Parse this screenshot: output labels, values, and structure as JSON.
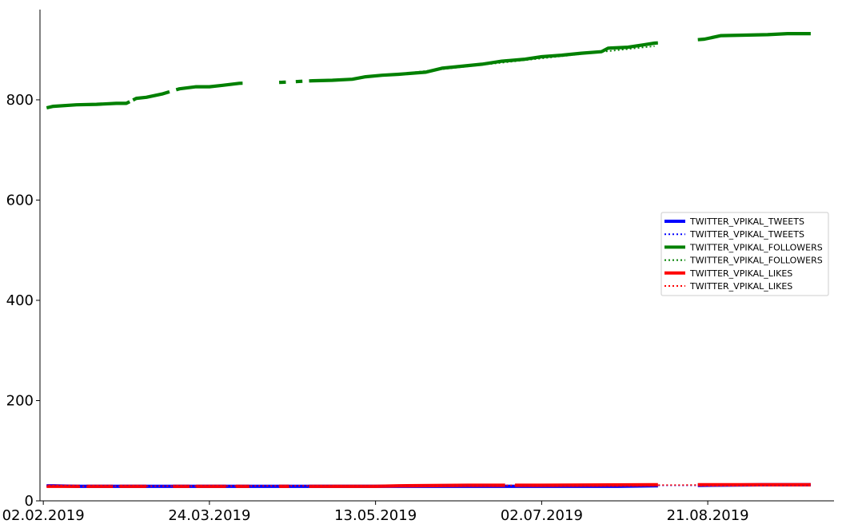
{
  "chart_data": {
    "type": "line",
    "title": "",
    "xlabel": "",
    "ylabel": "",
    "x_axis": {
      "type": "date",
      "range": [
        "2019-02-01",
        "2019-09-28"
      ],
      "ticks": [
        {
          "date": "2019-02-02",
          "label": "02.02.2019"
        },
        {
          "date": "2019-03-24",
          "label": "24.03.2019"
        },
        {
          "date": "2019-05-13",
          "label": "13.05.2019"
        },
        {
          "date": "2019-07-02",
          "label": "02.07.2019"
        },
        {
          "date": "2019-08-21",
          "label": "21.08.2019"
        }
      ]
    },
    "y_axis": {
      "range": [
        0,
        980
      ],
      "ticks": [
        {
          "value": 0,
          "label": "0"
        },
        {
          "value": 200,
          "label": "200"
        },
        {
          "value": 400,
          "label": "400"
        },
        {
          "value": 600,
          "label": "600"
        },
        {
          "value": 800,
          "label": "800"
        }
      ]
    },
    "grid": false,
    "legend": {
      "position": "center-right"
    },
    "series": [
      {
        "name": "TWITTER_VPIKAL_TWEETS",
        "color": "#0000ff",
        "style": "solid",
        "points": [
          [
            "2019-02-03",
            30
          ],
          [
            "2019-02-05",
            30
          ],
          [
            "2019-02-12",
            29
          ],
          [
            "2019-02-20",
            29
          ],
          [
            "2019-03-05",
            29
          ],
          [
            "2019-03-24",
            29
          ],
          [
            "2019-04-15",
            29
          ],
          [
            "2019-05-05",
            29
          ],
          [
            "2019-06-01",
            29
          ],
          [
            "2019-07-01",
            29
          ],
          [
            "2019-07-25",
            29
          ],
          [
            "2019-08-05",
            30
          ],
          [
            "2019-08-20",
            31
          ],
          [
            "2019-09-06",
            32
          ],
          [
            "2019-09-21",
            32
          ]
        ],
        "gaps": [
          [
            "2019-08-06",
            "2019-08-18"
          ]
        ]
      },
      {
        "name": "TWITTER_VPIKAL_TWEETS",
        "color": "#0000ff",
        "style": "dotted",
        "points": [
          [
            "2019-02-03",
            30
          ],
          [
            "2019-09-21",
            31
          ]
        ],
        "gaps": []
      },
      {
        "name": "TWITTER_VPIKAL_FOLLOWERS",
        "color": "#008000",
        "style": "solid",
        "points": [
          [
            "2019-02-03",
            784
          ],
          [
            "2019-02-05",
            787
          ],
          [
            "2019-02-12",
            790
          ],
          [
            "2019-02-18",
            791
          ],
          [
            "2019-02-24",
            793
          ],
          [
            "2019-02-27",
            793
          ],
          [
            "2019-03-02",
            803
          ],
          [
            "2019-03-05",
            805
          ],
          [
            "2019-03-10",
            812
          ],
          [
            "2019-03-15",
            822
          ],
          [
            "2019-03-20",
            826
          ],
          [
            "2019-03-24",
            826
          ],
          [
            "2019-03-28",
            829
          ],
          [
            "2019-04-02",
            833
          ],
          [
            "2019-04-15",
            835
          ],
          [
            "2019-04-24",
            838
          ],
          [
            "2019-04-30",
            839
          ],
          [
            "2019-05-06",
            841
          ],
          [
            "2019-05-10",
            846
          ],
          [
            "2019-05-15",
            849
          ],
          [
            "2019-05-20",
            851
          ],
          [
            "2019-05-28",
            855
          ],
          [
            "2019-06-02",
            863
          ],
          [
            "2019-06-08",
            867
          ],
          [
            "2019-06-14",
            871
          ],
          [
            "2019-06-20",
            877
          ],
          [
            "2019-06-27",
            881
          ],
          [
            "2019-07-02",
            886
          ],
          [
            "2019-07-08",
            889
          ],
          [
            "2019-07-14",
            893
          ],
          [
            "2019-07-20",
            896
          ],
          [
            "2019-07-22",
            903
          ],
          [
            "2019-07-28",
            905
          ],
          [
            "2019-08-02",
            910
          ],
          [
            "2019-08-05",
            913
          ],
          [
            "2019-08-20",
            921
          ],
          [
            "2019-08-25",
            928
          ],
          [
            "2019-09-01",
            929
          ],
          [
            "2019-09-08",
            930
          ],
          [
            "2019-09-14",
            932
          ],
          [
            "2019-09-21",
            932
          ]
        ],
        "gaps": [
          [
            "2019-02-28",
            "2019-03-01"
          ],
          [
            "2019-03-12",
            "2019-03-14"
          ],
          [
            "2019-04-03",
            "2019-04-14"
          ],
          [
            "2019-04-16",
            "2019-04-19"
          ],
          [
            "2019-04-21",
            "2019-04-23"
          ],
          [
            "2019-08-06",
            "2019-08-18"
          ]
        ]
      },
      {
        "name": "TWITTER_VPIKAL_FOLLOWERS",
        "color": "#008000",
        "style": "dotted",
        "points": [
          [
            "2019-05-01",
            838
          ],
          [
            "2019-08-05",
            907
          ]
        ],
        "gaps": []
      },
      {
        "name": "TWITTER_VPIKAL_LIKES",
        "color": "#ff0000",
        "style": "solid",
        "points": [
          [
            "2019-02-03",
            29
          ],
          [
            "2019-02-20",
            29
          ],
          [
            "2019-03-24",
            29
          ],
          [
            "2019-04-24",
            29
          ],
          [
            "2019-05-13",
            29
          ],
          [
            "2019-05-20",
            30
          ],
          [
            "2019-06-10",
            31
          ],
          [
            "2019-07-02",
            31
          ],
          [
            "2019-08-05",
            32
          ],
          [
            "2019-08-20",
            32
          ],
          [
            "2019-09-21",
            32
          ]
        ],
        "gaps": [
          [
            "2019-02-13",
            "2019-02-15"
          ],
          [
            "2019-02-23",
            "2019-02-25"
          ],
          [
            "2019-03-05",
            "2019-03-13"
          ],
          [
            "2019-03-18",
            "2019-03-20"
          ],
          [
            "2019-03-29",
            "2019-04-01"
          ],
          [
            "2019-04-05",
            "2019-04-14"
          ],
          [
            "2019-04-17",
            "2019-04-23"
          ],
          [
            "2019-06-21",
            "2019-06-24"
          ],
          [
            "2019-08-06",
            "2019-08-18"
          ]
        ]
      },
      {
        "name": "TWITTER_VPIKAL_LIKES",
        "color": "#ff0000",
        "style": "dotted",
        "points": [
          [
            "2019-02-03",
            29
          ],
          [
            "2019-09-21",
            32
          ]
        ],
        "gaps": []
      }
    ]
  }
}
